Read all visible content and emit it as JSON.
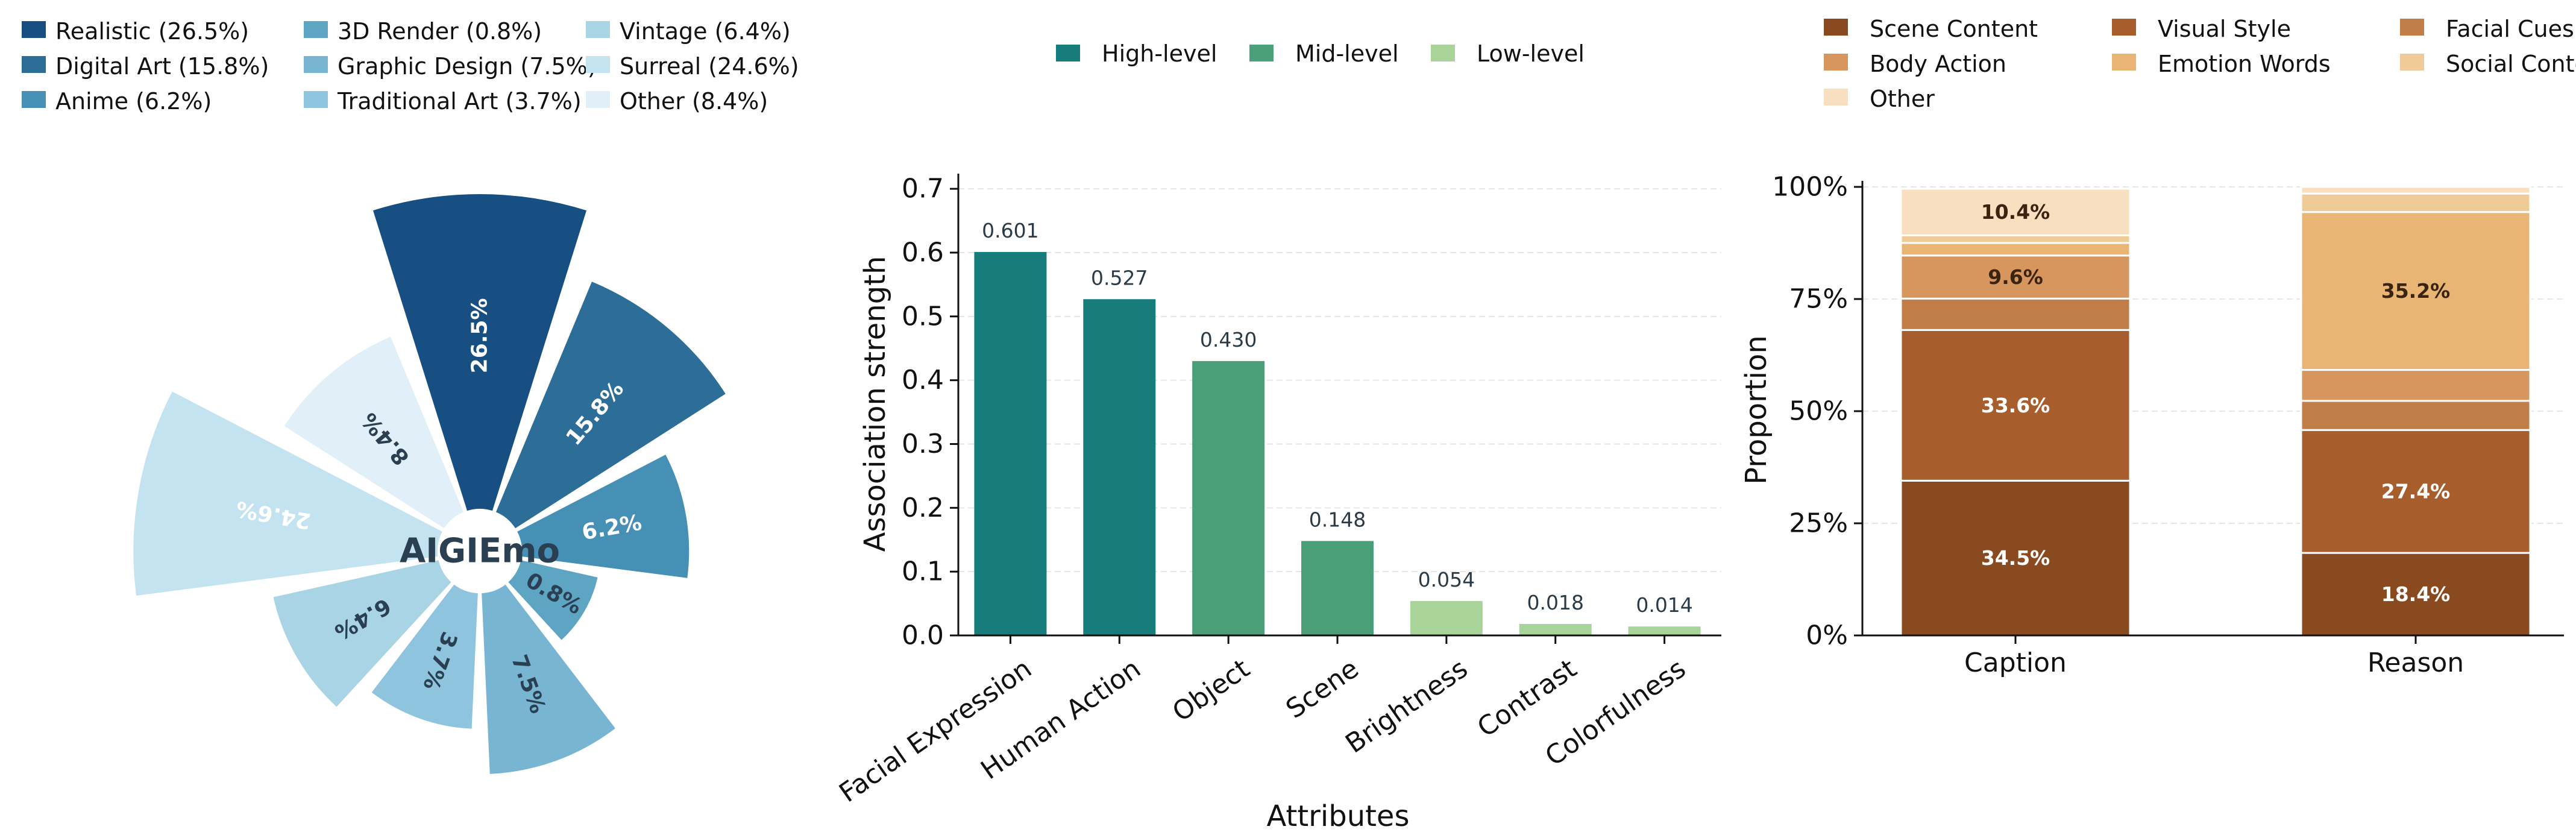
{
  "chart_data": [
    {
      "type": "pie",
      "title": "AIGIEmo",
      "legend_position": "top",
      "categories": [
        "Realistic",
        "Digital Art",
        "Anime",
        "3D Render",
        "Graphic Design",
        "Traditional Art",
        "Vintage",
        "Surreal",
        "Other"
      ],
      "values": [
        26.5,
        15.8,
        6.2,
        0.8,
        7.5,
        3.7,
        6.4,
        24.6,
        8.4
      ],
      "labels": [
        "26.5%",
        "15.8%",
        "6.2%",
        "0.8%",
        "7.5%",
        "3.7%",
        "6.4%",
        "24.6%",
        "8.4%"
      ],
      "legend": [
        "Realistic (26.5%)",
        "Digital Art (15.8%)",
        "Anime (6.2%)",
        "3D Render (0.8%)",
        "Graphic Design (7.5%)",
        "Traditional Art (3.7%)",
        "Vintage (6.4%)",
        "Surreal (24.6%)",
        "Other (8.4%)"
      ],
      "colors": [
        "#174f82",
        "#2c6e98",
        "#4590b4",
        "#5ea4c3",
        "#77b5d3",
        "#8ec4dd",
        "#a9d4e6",
        "#c4e3f0",
        "#e1f0f8"
      ]
    },
    {
      "type": "bar",
      "xlabel": "Attributes",
      "ylabel": "Association strength",
      "ylim": [
        0,
        0.72
      ],
      "yticks": [
        "0.0",
        "0.1",
        "0.2",
        "0.3",
        "0.4",
        "0.5",
        "0.6",
        "0.7"
      ],
      "grid": true,
      "legend_position": "top",
      "categories": [
        "Facial Expression",
        "Human Action",
        "Object",
        "Scene",
        "Brightness",
        "Contrast",
        "Colorfulness"
      ],
      "values": [
        0.601,
        0.527,
        0.43,
        0.148,
        0.054,
        0.018,
        0.014
      ],
      "value_labels": [
        "0.601",
        "0.527",
        "0.430",
        "0.148",
        "0.054",
        "0.018",
        "0.014"
      ],
      "levels": [
        "High-level",
        "High-level",
        "Mid-level",
        "Mid-level",
        "Low-level",
        "Low-level",
        "Low-level"
      ],
      "legend": [
        "High-level",
        "Mid-level",
        "Low-level"
      ],
      "colors": {
        "High-level": "#167c7c",
        "Mid-level": "#4a9e78",
        "Low-level": "#a8d49a"
      }
    },
    {
      "type": "bar",
      "stacked": true,
      "ylabel": "Proportion",
      "ylim": [
        0,
        100
      ],
      "yticks": [
        "0%",
        "25%",
        "50%",
        "75%",
        "100%"
      ],
      "grid": true,
      "legend_position": "top",
      "categories": [
        "Caption",
        "Reason"
      ],
      "series": [
        {
          "name": "Scene Content",
          "values": [
            34.5,
            18.4
          ],
          "labels": [
            "34.5%",
            "18.4%"
          ],
          "color": "#8a4a1f"
        },
        {
          "name": "Visual Style",
          "values": [
            33.6,
            27.4
          ],
          "labels": [
            "33.6%",
            "27.4%"
          ],
          "color": "#a85e2c"
        },
        {
          "name": "Facial Cues",
          "values": [
            7.0,
            6.5
          ],
          "labels": [
            "",
            ""
          ],
          "color": "#c27e48"
        },
        {
          "name": "Body Action",
          "values": [
            9.6,
            6.9
          ],
          "labels": [
            "9.6%",
            ""
          ],
          "color": "#d6965e"
        },
        {
          "name": "Emotion Words",
          "values": [
            2.8,
            35.2
          ],
          "labels": [
            "",
            "35.2%"
          ],
          "color": "#e8b574"
        },
        {
          "name": "Social Context",
          "values": [
            1.7,
            4.1
          ],
          "labels": [
            "",
            ""
          ],
          "color": "#efcb98"
        },
        {
          "name": "Other",
          "values": [
            10.4,
            1.5
          ],
          "labels": [
            "10.4%",
            ""
          ],
          "color": "#f7dfc0"
        }
      ]
    }
  ]
}
